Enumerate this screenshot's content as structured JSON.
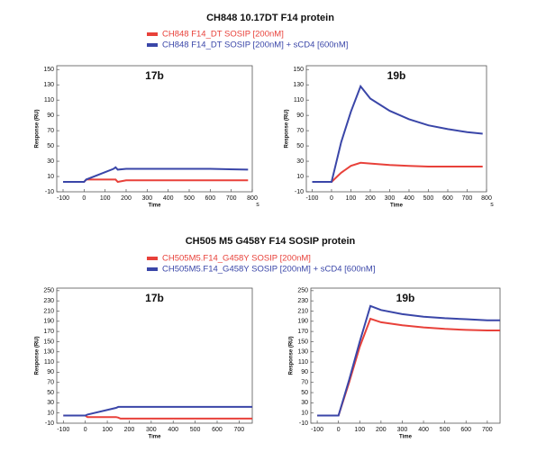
{
  "chart_data": [
    {
      "type": "line",
      "group_title": "CH848 10.17DT F14 protein",
      "title": "17b",
      "x_label": "Time",
      "x_unit": "s",
      "y_label": "Response (RU)",
      "x": [
        -100,
        0,
        10,
        140,
        150,
        160,
        200,
        400,
        600,
        780
      ],
      "series": [
        {
          "name": "CH848 F14_DT SOSIP [200nM]",
          "color": "#e8413a",
          "values": [
            3,
            3,
            6,
            6,
            6,
            3,
            5,
            5,
            5,
            5
          ]
        },
        {
          "name": "CH848 F14_DT SOSIP [200nM] + sCD4 [600nM]",
          "color": "#3a46a8",
          "values": [
            3,
            3,
            6,
            20,
            22,
            19,
            20,
            20,
            20,
            19
          ]
        }
      ],
      "xlim": [
        -130,
        800
      ],
      "xticks": [
        -100,
        0,
        100,
        200,
        300,
        400,
        500,
        600,
        700,
        800
      ],
      "ylim": [
        -10,
        155
      ],
      "yticks": [
        -10,
        10,
        30,
        50,
        70,
        90,
        110,
        130,
        150
      ]
    },
    {
      "type": "line",
      "title": "19b",
      "x_label": "Time",
      "x_unit": "s",
      "y_label": "Response (RU)",
      "x": [
        -100,
        0,
        50,
        100,
        150,
        200,
        300,
        400,
        500,
        600,
        700,
        780
      ],
      "series": [
        {
          "color": "#e8413a",
          "values": [
            3,
            3,
            15,
            24,
            28,
            27,
            25,
            24,
            23,
            23,
            23,
            23
          ]
        },
        {
          "color": "#3a46a8",
          "values": [
            3,
            3,
            55,
            95,
            128,
            112,
            96,
            85,
            77,
            72,
            68,
            66
          ]
        }
      ],
      "xlim": [
        -130,
        800
      ],
      "xticks": [
        -100,
        0,
        100,
        200,
        300,
        400,
        500,
        600,
        700,
        800
      ],
      "ylim": [
        -10,
        155
      ],
      "yticks": [
        -10,
        10,
        30,
        50,
        70,
        90,
        110,
        130,
        150
      ]
    },
    {
      "type": "line",
      "group_title": "CH505 M5 G458Y F14 SOSIP protein",
      "title": "17b",
      "x_label": "Time",
      "y_label": "Response (RU)",
      "x": [
        -100,
        0,
        10,
        140,
        150,
        160,
        300,
        500,
        700,
        760
      ],
      "series": [
        {
          "name": "CH505M5.F14_G458Y SOSIP [200nM]",
          "color": "#e8413a",
          "values": [
            5,
            5,
            2,
            2,
            1,
            -1,
            -1,
            -1,
            -1,
            -1
          ]
        },
        {
          "name": "CH505M5.F14_G458Y SOSIP [200nM] + sCD4 [600nM]",
          "color": "#3a46a8",
          "values": [
            5,
            5,
            7,
            20,
            22,
            22,
            22,
            22,
            22,
            22
          ]
        }
      ],
      "xlim": [
        -130,
        760
      ],
      "xticks": [
        -100,
        0,
        100,
        200,
        300,
        400,
        500,
        600,
        700
      ],
      "ylim": [
        -10,
        255
      ],
      "yticks": [
        -10,
        10,
        30,
        50,
        70,
        90,
        110,
        130,
        150,
        170,
        190,
        210,
        230,
        250
      ]
    },
    {
      "type": "line",
      "title": "19b",
      "x_label": "Time",
      "y_label": "Response (RU)",
      "x": [
        -100,
        0,
        50,
        100,
        150,
        200,
        300,
        400,
        500,
        600,
        700,
        760
      ],
      "series": [
        {
          "color": "#e8413a",
          "values": [
            5,
            5,
            70,
            140,
            195,
            188,
            182,
            178,
            175,
            173,
            172,
            172
          ]
        },
        {
          "color": "#3a46a8",
          "values": [
            5,
            5,
            75,
            150,
            220,
            212,
            204,
            199,
            196,
            194,
            192,
            192
          ]
        }
      ],
      "xlim": [
        -130,
        760
      ],
      "xticks": [
        -100,
        0,
        100,
        200,
        300,
        400,
        500,
        600,
        700
      ],
      "ylim": [
        -10,
        255
      ],
      "yticks": [
        -10,
        10,
        30,
        50,
        70,
        90,
        110,
        130,
        150,
        170,
        190,
        210,
        230,
        250
      ]
    }
  ]
}
